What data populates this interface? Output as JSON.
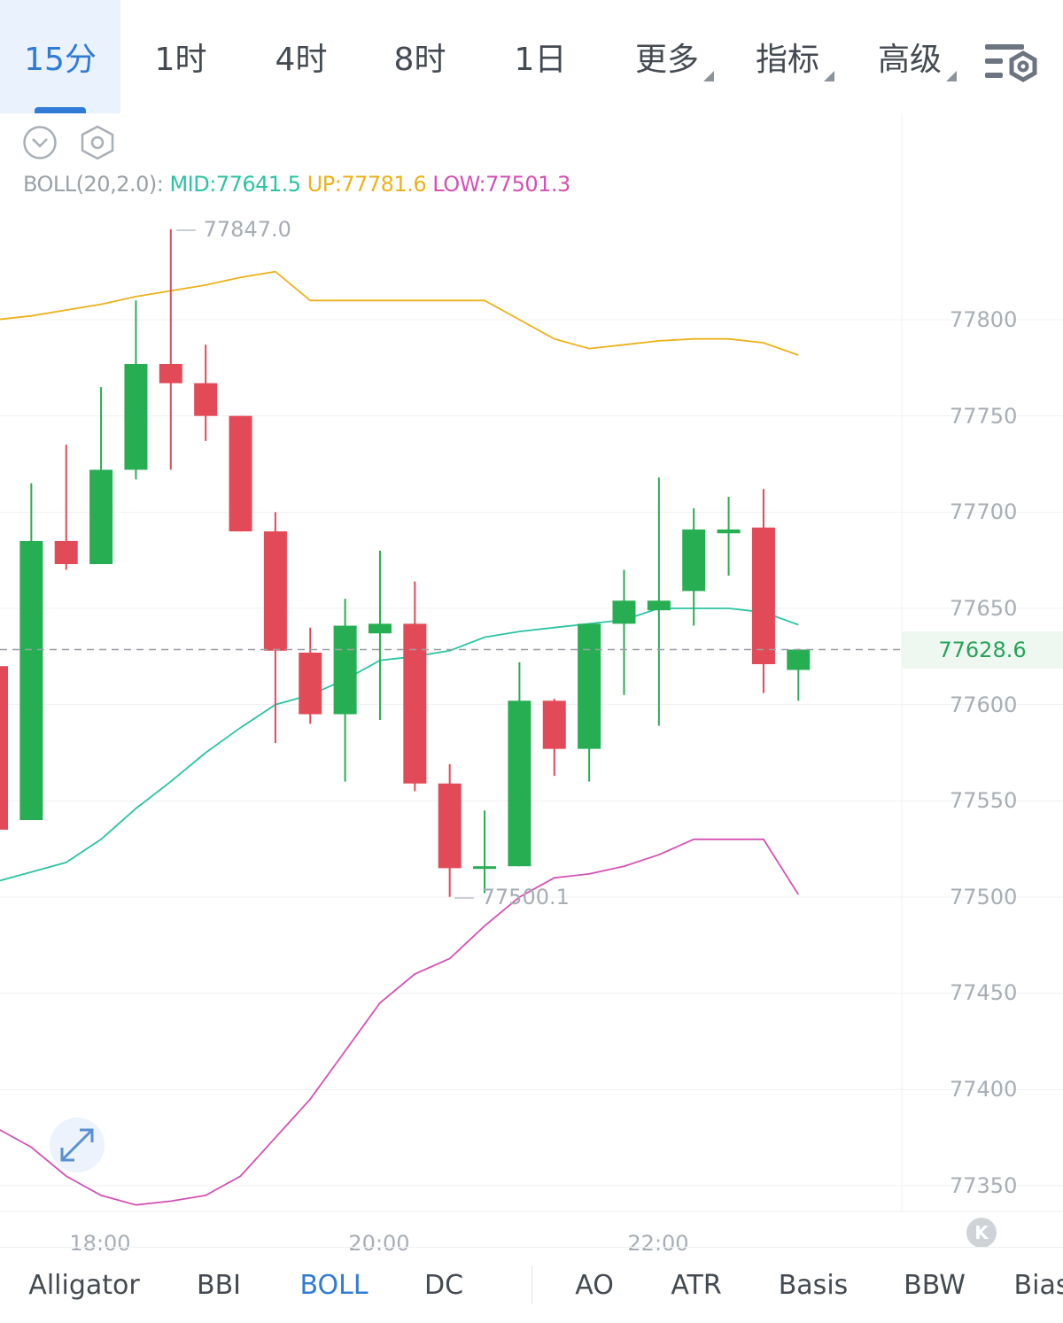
{
  "tabs": [
    {
      "label": "15分",
      "active": true
    },
    {
      "label": "1时"
    },
    {
      "label": "4时"
    },
    {
      "label": "8时"
    },
    {
      "label": "1日"
    },
    {
      "label": "更多",
      "dropdown": true
    },
    {
      "label": "指标",
      "dropdown": true
    },
    {
      "label": "高级",
      "dropdown": true
    }
  ],
  "icons": {
    "settings": "chart-settings-icon",
    "collapse": "chevron-down-circle-icon",
    "hexagon": "hexagon-settings-icon",
    "expand": "expand-arrows-icon",
    "scroll_to_latest": "scroll-to-latest-icon"
  },
  "indicator": {
    "name": "BOLL(20,2.0):",
    "mid_label": "MID:",
    "mid_value": "77641.5",
    "up_label": "UP:",
    "up_value": "77781.6",
    "low_label": "LOW:",
    "low_value": "77501.3"
  },
  "markers": {
    "high": "77847.0",
    "low": "77500.1"
  },
  "current_price": "77628.6",
  "y_axis": [
    "77800",
    "77750",
    "77700",
    "77650",
    "77600",
    "77550",
    "77500",
    "77450",
    "77400",
    "77350"
  ],
  "x_axis": [
    "18:00",
    "20:00",
    "22:00"
  ],
  "scroll_button_label": "K",
  "indicators_bar": [
    {
      "label": "Alligator"
    },
    {
      "label": "BBI"
    },
    {
      "label": "BOLL",
      "active": true
    },
    {
      "label": "DC"
    },
    {
      "label": "AO"
    },
    {
      "label": "ATR"
    },
    {
      "label": "Basis"
    },
    {
      "label": "BBW"
    },
    {
      "label": "Bias"
    }
  ],
  "colors": {
    "up": "#27ae53",
    "down": "#e24a57",
    "boll_mid": "#2bc4a2",
    "boll_up": "#ebb21a",
    "boll_low": "#d452b4",
    "accent": "#2f7bd6"
  },
  "chart_data": {
    "type": "candlestick",
    "interval": "15分",
    "y_range": [
      77350,
      77800
    ],
    "candles": [
      {
        "open": 77620,
        "high": 77620,
        "low": 77535,
        "close": 77535
      },
      {
        "open": 77540,
        "high": 77715,
        "low": 77540,
        "close": 77685
      },
      {
        "open": 77685,
        "high": 77735,
        "low": 77670,
        "close": 77673
      },
      {
        "open": 77673,
        "high": 77765,
        "low": 77673,
        "close": 77722
      },
      {
        "open": 77722,
        "high": 77810,
        "low": 77717,
        "close": 77777
      },
      {
        "open": 77777,
        "high": 77847,
        "low": 77722,
        "close": 77767
      },
      {
        "open": 77767,
        "high": 77787,
        "low": 77737,
        "close": 77750
      },
      {
        "open": 77750,
        "high": 77750,
        "low": 77690,
        "close": 77690
      },
      {
        "open": 77690,
        "high": 77700,
        "low": 77580,
        "close": 77628
      },
      {
        "open": 77627,
        "high": 77640,
        "low": 77590,
        "close": 77595
      },
      {
        "open": 77595,
        "high": 77655,
        "low": 77560,
        "close": 77641
      },
      {
        "open": 77637,
        "high": 77680,
        "low": 77592,
        "close": 77642
      },
      {
        "open": 77642,
        "high": 77664,
        "low": 77555,
        "close": 77559
      },
      {
        "open": 77559,
        "high": 77569,
        "low": 77500.1,
        "close": 77515
      },
      {
        "open": 77515,
        "high": 77545,
        "low": 77502,
        "close": 77516
      },
      {
        "open": 77516,
        "high": 77622,
        "low": 77516,
        "close": 77602
      },
      {
        "open": 77602,
        "high": 77603,
        "low": 77563,
        "close": 77577
      },
      {
        "open": 77577,
        "high": 77642,
        "low": 77560,
        "close": 77642
      },
      {
        "open": 77642,
        "high": 77670,
        "low": 77605,
        "close": 77654
      },
      {
        "open": 77649,
        "high": 77718,
        "low": 77589,
        "close": 77654
      },
      {
        "open": 77659,
        "high": 77702,
        "low": 77641,
        "close": 77691
      },
      {
        "open": 77689,
        "high": 77708,
        "low": 77667,
        "close": 77691
      },
      {
        "open": 77692,
        "high": 77712,
        "low": 77606,
        "close": 77621
      },
      {
        "open": 77618,
        "high": 77629,
        "low": 77602,
        "close": 77628.6
      }
    ],
    "boll_up": [
      77800,
      77802,
      77805,
      77808,
      77812,
      77815,
      77818,
      77822,
      77825,
      77810,
      77810,
      77810,
      77810,
      77810,
      77810,
      77800,
      77790,
      77785,
      77787,
      77789,
      77790,
      77790,
      77788,
      77781.6
    ],
    "boll_mid": [
      77508,
      77513,
      77518,
      77530,
      77546,
      77560,
      77575,
      77588,
      77600,
      77605,
      77613,
      77623,
      77625,
      77628,
      77635,
      77638,
      77640,
      77642,
      77644,
      77650,
      77650,
      77650,
      77648,
      77641.5
    ],
    "boll_low": [
      77380,
      77370,
      77355,
      77345,
      77340,
      77342,
      77345,
      77355,
      77375,
      77395,
      77420,
      77445,
      77460,
      77468,
      77485,
      77500,
      77510,
      77512,
      77516,
      77522,
      77530,
      77530,
      77530,
      77501.3
    ],
    "markers": {
      "high": 77847.0,
      "low": 77500.1
    },
    "current_price": 77628.6,
    "x_ticks": [
      "18:00",
      "20:00",
      "22:00"
    ],
    "y_ticks": [
      77800,
      77750,
      77700,
      77650,
      77600,
      77550,
      77500,
      77450,
      77400,
      77350
    ]
  }
}
